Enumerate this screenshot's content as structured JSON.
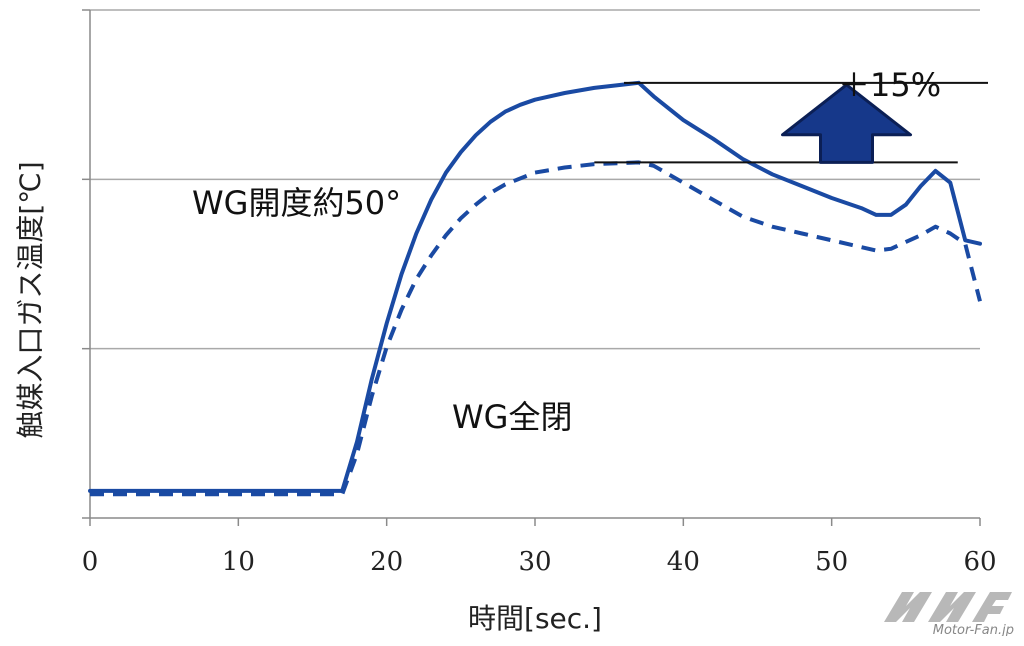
{
  "chart_data": {
    "type": "line",
    "title": "",
    "xlabel": "時間[sec.]",
    "ylabel": "触媒入口ガス温度[℃]",
    "xlim": [
      0,
      60
    ],
    "ylim": [
      0,
      3
    ],
    "x_ticks": [
      "0",
      "10",
      "20",
      "30",
      "40",
      "50",
      "60"
    ],
    "grid": true,
    "series": [
      {
        "name": "WG開度約50°",
        "style": "solid",
        "color": "#1a4aa3",
        "points": [
          [
            0,
            0.16
          ],
          [
            17,
            0.16
          ],
          [
            18,
            0.45
          ],
          [
            19,
            0.82
          ],
          [
            20,
            1.15
          ],
          [
            21,
            1.44
          ],
          [
            22,
            1.68
          ],
          [
            23,
            1.88
          ],
          [
            24,
            2.04
          ],
          [
            25,
            2.16
          ],
          [
            26,
            2.26
          ],
          [
            27,
            2.34
          ],
          [
            28,
            2.4
          ],
          [
            29,
            2.44
          ],
          [
            30,
            2.47
          ],
          [
            32,
            2.51
          ],
          [
            34,
            2.54
          ],
          [
            36,
            2.56
          ],
          [
            37,
            2.57
          ],
          [
            38,
            2.49
          ],
          [
            40,
            2.35
          ],
          [
            42,
            2.24
          ],
          [
            44,
            2.12
          ],
          [
            46,
            2.03
          ],
          [
            48,
            1.96
          ],
          [
            50,
            1.89
          ],
          [
            52,
            1.83
          ],
          [
            53,
            1.79
          ],
          [
            54,
            1.79
          ],
          [
            55,
            1.85
          ],
          [
            56,
            1.96
          ],
          [
            57,
            2.05
          ],
          [
            58,
            1.98
          ],
          [
            59,
            1.64
          ],
          [
            60,
            1.62
          ]
        ]
      },
      {
        "name": "WG全閉",
        "style": "dashed",
        "color": "#1a4aa3",
        "points": [
          [
            0,
            0.14
          ],
          [
            17,
            0.14
          ],
          [
            18,
            0.38
          ],
          [
            19,
            0.72
          ],
          [
            20,
            1.01
          ],
          [
            21,
            1.23
          ],
          [
            22,
            1.41
          ],
          [
            23,
            1.55
          ],
          [
            24,
            1.67
          ],
          [
            25,
            1.77
          ],
          [
            26,
            1.85
          ],
          [
            27,
            1.92
          ],
          [
            28,
            1.97
          ],
          [
            30,
            2.04
          ],
          [
            32,
            2.07
          ],
          [
            34,
            2.09
          ],
          [
            37,
            2.1
          ],
          [
            38,
            2.08
          ],
          [
            40,
            1.98
          ],
          [
            42,
            1.88
          ],
          [
            44,
            1.78
          ],
          [
            46,
            1.72
          ],
          [
            48,
            1.68
          ],
          [
            50,
            1.64
          ],
          [
            52,
            1.6
          ],
          [
            53,
            1.58
          ],
          [
            54,
            1.59
          ],
          [
            56,
            1.67
          ],
          [
            57,
            1.72
          ],
          [
            58,
            1.68
          ],
          [
            59,
            1.62
          ],
          [
            60,
            1.28
          ]
        ]
      }
    ],
    "annotations": [
      {
        "text": "＋15%"
      },
      {
        "text": "WG開度約50°"
      },
      {
        "text": "WG全閉"
      }
    ]
  },
  "watermark": {
    "text": "Motor-Fan.jp"
  }
}
